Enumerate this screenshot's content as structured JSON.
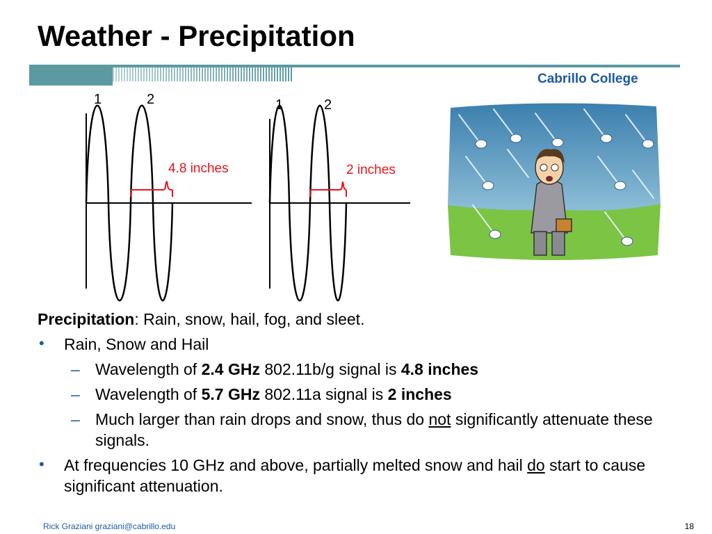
{
  "slide": {
    "title": "Weather - Precipitation",
    "college": "Cabrillo College",
    "figure": {
      "left": {
        "label1": "1",
        "label2": "2",
        "measure": "4.8 inches"
      },
      "right": {
        "label1": "1",
        "label2": "2",
        "measure": "2 inches"
      }
    },
    "heading": {
      "bold": "Precipitation",
      "rest": ": Rain, snow, hail, fog, and sleet."
    },
    "bullet1": {
      "text": "Rain, Snow and Hail",
      "sub1": {
        "a": "Wavelength of ",
        "b": "2.4 GHz",
        "c": " 802.11b/g signal is ",
        "d": "4.8 inches"
      },
      "sub2": {
        "a": "Wavelength of ",
        "b": "5.7 GHz",
        "c": " 802.11a signal is ",
        "d": "2 inches"
      },
      "sub3": {
        "a": "Much larger than rain drops and snow, thus do ",
        "u": "not",
        "c": " significantly attenuate these signals."
      }
    },
    "bullet2": {
      "a": "At frequencies 10 GHz and above, partially melted snow and hail ",
      "u": "do",
      "c": " start to cause significant attenuation."
    },
    "footer": {
      "author": "Rick Graziani  graziani@cabrillo.edu",
      "page": "18"
    }
  },
  "colors": {
    "accent": "#1d5aa6",
    "annotation": "#e8141c",
    "banner": "#5a9aa0"
  }
}
